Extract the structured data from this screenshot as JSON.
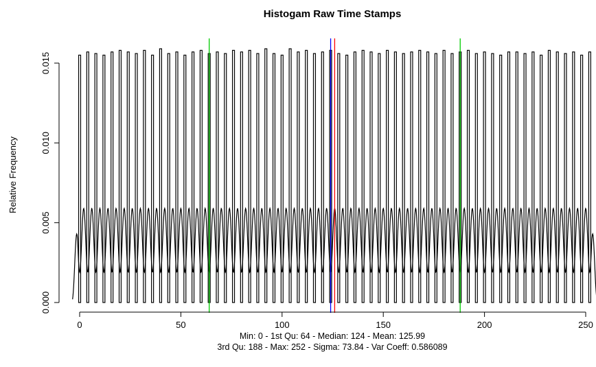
{
  "chart_data": {
    "type": "bar",
    "title": "Histogam Raw Time Stamps",
    "xlabel": "",
    "ylabel": "Relative Frequency",
    "subtitle_lines": [
      "Min: 0 - 1st Qu: 64 - Median: 124 - Mean: 125.99",
      "3rd Qu: 188 - Max: 252 - Sigma: 73.84 - Var Coeff: 0.586089"
    ],
    "xlim": [
      -3,
      255
    ],
    "ylim": [
      0,
      0.016
    ],
    "x_ticks": [
      0,
      50,
      100,
      150,
      200,
      250
    ],
    "x_tick_labels": [
      "0",
      "50",
      "100",
      "150",
      "200",
      "250"
    ],
    "y_ticks": [
      0.0,
      0.005,
      0.01,
      0.015
    ],
    "y_tick_labels": [
      "0.000",
      "0.005",
      "0.010",
      "0.015"
    ],
    "grid": false,
    "bar_width": 1,
    "bar_centers": [
      0,
      4,
      8,
      12,
      16,
      20,
      24,
      28,
      32,
      36,
      40,
      44,
      48,
      52,
      56,
      60,
      64,
      68,
      72,
      76,
      80,
      84,
      88,
      92,
      96,
      100,
      104,
      108,
      112,
      116,
      120,
      124,
      128,
      132,
      136,
      140,
      144,
      148,
      152,
      156,
      160,
      164,
      168,
      172,
      176,
      180,
      184,
      188,
      192,
      196,
      200,
      204,
      208,
      212,
      216,
      220,
      224,
      228,
      232,
      236,
      240,
      244,
      248,
      252
    ],
    "bar_heights": [
      0.0155,
      0.0157,
      0.0156,
      0.0155,
      0.0157,
      0.0158,
      0.0157,
      0.0156,
      0.0158,
      0.0155,
      0.0159,
      0.0156,
      0.0157,
      0.0155,
      0.0157,
      0.0158,
      0.0156,
      0.0157,
      0.0156,
      0.0158,
      0.0157,
      0.0158,
      0.0156,
      0.0159,
      0.0156,
      0.0155,
      0.0159,
      0.0157,
      0.0158,
      0.0156,
      0.0157,
      0.0158,
      0.0156,
      0.0155,
      0.0157,
      0.0158,
      0.0157,
      0.0156,
      0.0158,
      0.0157,
      0.0156,
      0.0157,
      0.0158,
      0.0157,
      0.0156,
      0.0158,
      0.0156,
      0.0157,
      0.0158,
      0.0156,
      0.0157,
      0.0156,
      0.0155,
      0.0157,
      0.0157,
      0.0156,
      0.0157,
      0.0155,
      0.0158,
      0.0157,
      0.0156,
      0.0157,
      0.0155,
      0.0157
    ],
    "density_curve": {
      "x_start": -3.5,
      "x_end": 255.5,
      "period": 4,
      "peak": 0.0059,
      "trough": 0.0019,
      "edge_value": 0.0002
    },
    "vlines": [
      {
        "name": "1st Qu",
        "x": 64,
        "color": "#00cc00"
      },
      {
        "name": "Median",
        "x": 124,
        "color": "#0000ff"
      },
      {
        "name": "Mean",
        "x": 125.99,
        "color": "#ff0000"
      },
      {
        "name": "3rd Qu",
        "x": 188,
        "color": "#00cc00"
      }
    ]
  }
}
